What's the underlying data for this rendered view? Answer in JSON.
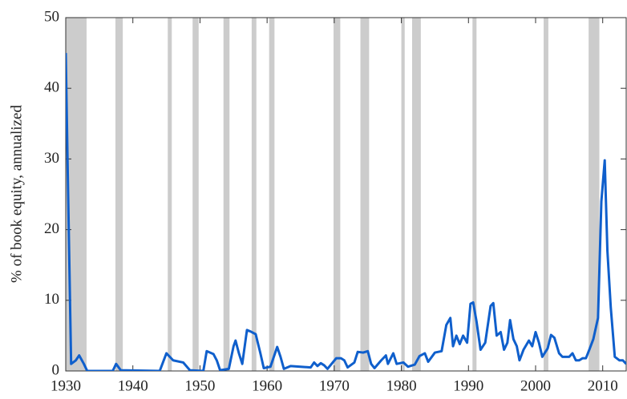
{
  "chart_data": {
    "type": "line",
    "y_label": "% of book equity, annualized",
    "x": [
      1930.0,
      1930.3,
      1930.8,
      1931.5,
      1932.0,
      1932.7,
      1933.2,
      1937.0,
      1937.5,
      1938.2,
      1944.0,
      1945.0,
      1946.0,
      1947.5,
      1948.5,
      1950.5,
      1951.0,
      1952.0,
      1952.5,
      1953.0,
      1954.3,
      1955.0,
      1955.3,
      1955.8,
      1956.3,
      1957.0,
      1957.5,
      1958.3,
      1959.0,
      1959.5,
      1960.5,
      1961.5,
      1962.0,
      1962.5,
      1963.5,
      1965.0,
      1966.5,
      1967.0,
      1967.5,
      1968.0,
      1968.5,
      1969.0,
      1970.3,
      1971.0,
      1971.5,
      1972.0,
      1973.0,
      1973.5,
      1974.3,
      1975.0,
      1975.5,
      1976.0,
      1977.0,
      1977.7,
      1978.0,
      1978.8,
      1979.3,
      1980.3,
      1981.0,
      1982.0,
      1982.7,
      1983.5,
      1984.0,
      1985.0,
      1986.0,
      1986.7,
      1987.3,
      1987.7,
      1988.2,
      1988.7,
      1989.2,
      1989.8,
      1990.3,
      1990.7,
      1991.2,
      1991.8,
      1992.5,
      1993.3,
      1993.7,
      1994.2,
      1994.8,
      1995.3,
      1995.8,
      1996.2,
      1996.7,
      1997.2,
      1997.6,
      1998.2,
      1999.0,
      1999.5,
      2000.0,
      2000.5,
      2001.0,
      2001.8,
      2002.3,
      2002.8,
      2003.5,
      2004.0,
      2005.0,
      2005.5,
      2006.0,
      2006.5,
      2007.0,
      2007.5,
      2008.0,
      2008.6,
      2009.3,
      2009.8,
      2010.3,
      2010.7,
      2011.2,
      2011.8,
      2012.5,
      2013.0,
      2013.5
    ],
    "series": [
      {
        "color": "#0f5fcc",
        "values": [
          45,
          28,
          1,
          1.5,
          2.2,
          1,
          0,
          0,
          1,
          0.1,
          0,
          2.5,
          1.5,
          1.2,
          0.1,
          0,
          2.8,
          2.4,
          1.5,
          0.1,
          0.3,
          3.5,
          4.3,
          2.5,
          1,
          5.8,
          5.6,
          5.2,
          2.5,
          0.4,
          0.6,
          3.4,
          2,
          0.3,
          0.7,
          0.6,
          0.5,
          1.2,
          0.7,
          1.1,
          0.8,
          0.3,
          1.8,
          1.8,
          1.5,
          0.5,
          1.2,
          2.7,
          2.6,
          2.8,
          1,
          0.4,
          1.5,
          2.2,
          1,
          2.5,
          1,
          1.2,
          0.6,
          0.9,
          2.1,
          2.5,
          1.3,
          2.6,
          2.8,
          6.5,
          7.5,
          3.5,
          5,
          3.8,
          5,
          4,
          9.5,
          9.7,
          7,
          3,
          4,
          9.2,
          9.6,
          5,
          5.5,
          3,
          4,
          7.2,
          4.5,
          3.5,
          1.5,
          3,
          4.3,
          3.5,
          5.5,
          4,
          2,
          3.2,
          5.1,
          4.7,
          2.5,
          2,
          2,
          2.5,
          1.5,
          1.5,
          1.8,
          1.8,
          3,
          4.5,
          7.5,
          24,
          29.8,
          17,
          9,
          2,
          1.5,
          1.5,
          1
        ]
      }
    ],
    "shaded_periods": [
      [
        1929.6,
        1933.1
      ],
      [
        1937.4,
        1938.5
      ],
      [
        1945.2,
        1945.8
      ],
      [
        1948.9,
        1949.8
      ],
      [
        1953.5,
        1954.4
      ],
      [
        1957.7,
        1958.4
      ],
      [
        1960.3,
        1961.1
      ],
      [
        1969.9,
        1970.9
      ],
      [
        1973.9,
        1975.2
      ],
      [
        1980.0,
        1980.5
      ],
      [
        1981.6,
        1982.9
      ],
      [
        1990.6,
        1991.2
      ],
      [
        2001.2,
        2001.9
      ],
      [
        2007.9,
        2009.5
      ]
    ],
    "shade_color": "#cccccc",
    "xlim": [
      1930,
      2013.5
    ],
    "ylim": [
      0,
      50
    ],
    "xticks": [
      1930,
      1940,
      1950,
      1960,
      1970,
      1980,
      1990,
      2000,
      2010
    ],
    "yticks": [
      0,
      10,
      20,
      30,
      40,
      50
    ]
  }
}
